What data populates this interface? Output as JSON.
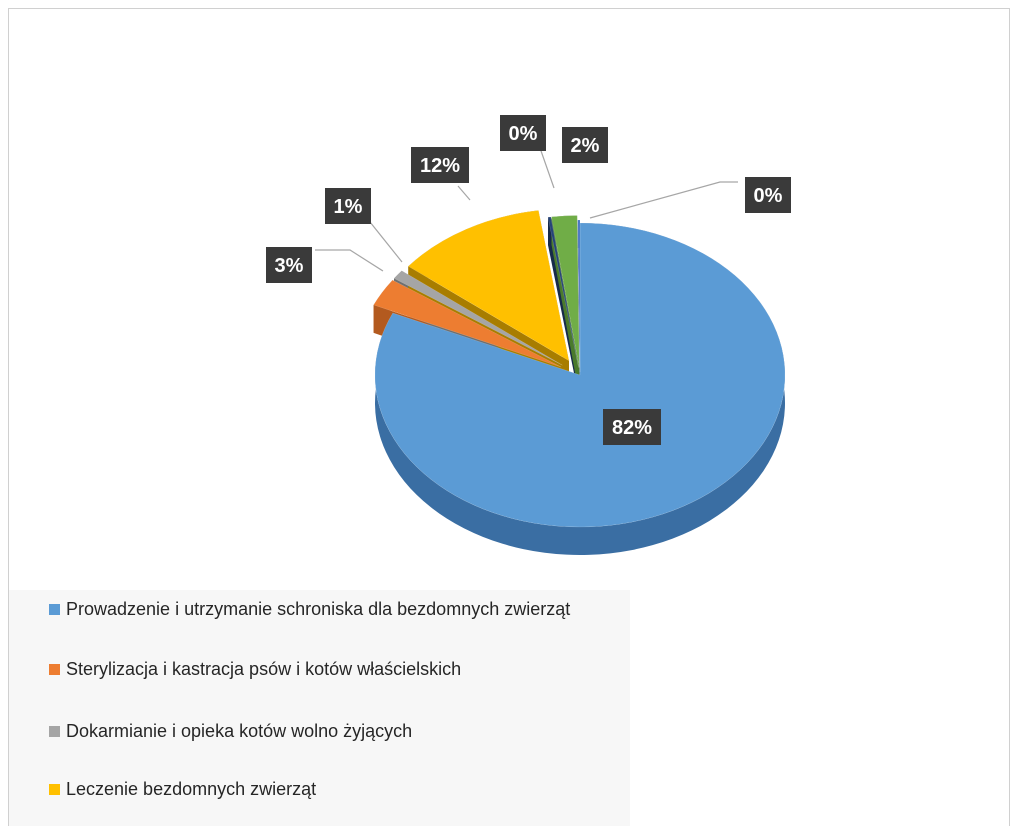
{
  "chart_data": {
    "type": "pie",
    "title": "",
    "slices": [
      {
        "name": "Prowadzenie i utrzymanie schroniska dla bezdomnych zwierząt",
        "value": 82,
        "label": "82%",
        "color": "#5b9bd5",
        "side": "#3a6ea3"
      },
      {
        "name": "Sterylizacja i kastracja psów i kotów właścielskich",
        "value": 3,
        "label": "3%",
        "color": "#ed7d31",
        "side": "#b35a1f"
      },
      {
        "name": "Dokarmianie i opieka kotów wolno żyjących",
        "value": 1,
        "label": "1%",
        "color": "#a5a5a5",
        "side": "#6f6f6f"
      },
      {
        "name": "Leczenie bezdomnych zwierząt",
        "value": 12,
        "label": "12%",
        "color": "#ffc000",
        "side": "#a87d00"
      },
      {
        "name": "",
        "value": 0,
        "label": "0%",
        "color": "#264478",
        "side": "#172a4a"
      },
      {
        "name": "",
        "value": 2,
        "label": "2%",
        "color": "#70ad47",
        "side": "#4a7a2c"
      },
      {
        "name": "",
        "value": 0,
        "label": "0%",
        "color": "#4472c4",
        "side": "#2c4f8e"
      }
    ],
    "legend_position": "bottom",
    "style": "3d-exploded"
  },
  "legend": {
    "items": [
      {
        "label": "Prowadzenie i utrzymanie schroniska dla bezdomnych zwierząt",
        "color": "#5b9bd5"
      },
      {
        "label": "Sterylizacja i kastracja psów i kotów właścielskich",
        "color": "#ed7d31"
      },
      {
        "label": "Dokarmianie i opieka kotów wolno żyjących",
        "color": "#a5a5a5"
      },
      {
        "label": "Leczenie bezdomnych zwierząt",
        "color": "#ffc000"
      }
    ]
  }
}
